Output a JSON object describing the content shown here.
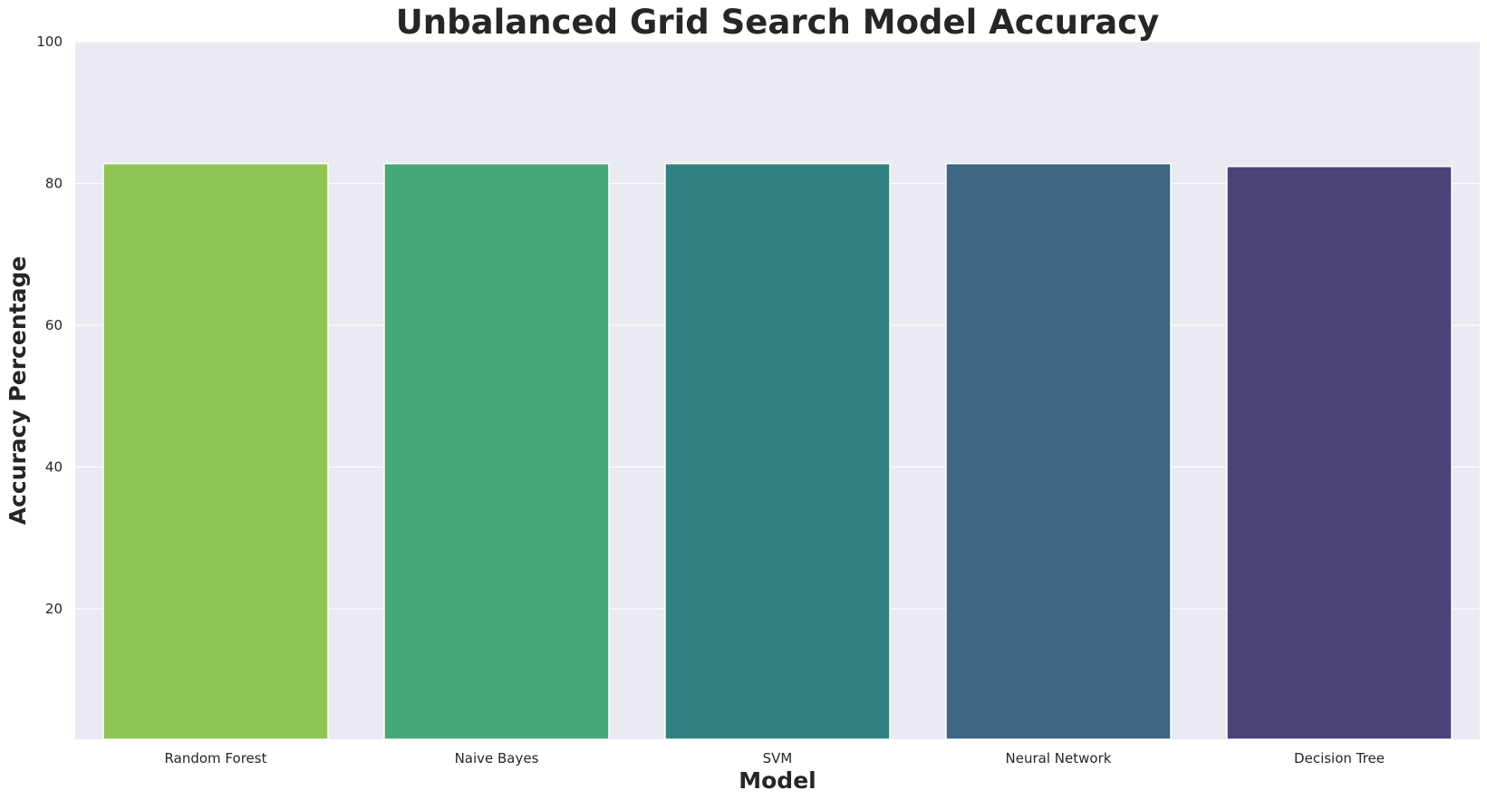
{
  "chart_data": {
    "type": "bar",
    "title": "Unbalanced Grid Search Model Accuracy",
    "xlabel": "Model",
    "ylabel": "Accuracy Percentage",
    "categories": [
      "Random Forest",
      "Naive Bayes",
      "SVM",
      "Neural Network",
      "Decision Tree"
    ],
    "values": [
      82.8,
      82.8,
      82.8,
      82.8,
      82.4
    ],
    "colors": [
      "#8fc555",
      "#47a779",
      "#318181",
      "#3e6581",
      "#4b4278"
    ],
    "ylim": [
      1.6,
      100
    ],
    "yticks": [
      20,
      40,
      60,
      80,
      100
    ],
    "grid": true,
    "legend": "none",
    "plot_background": "#eaeaf2"
  }
}
